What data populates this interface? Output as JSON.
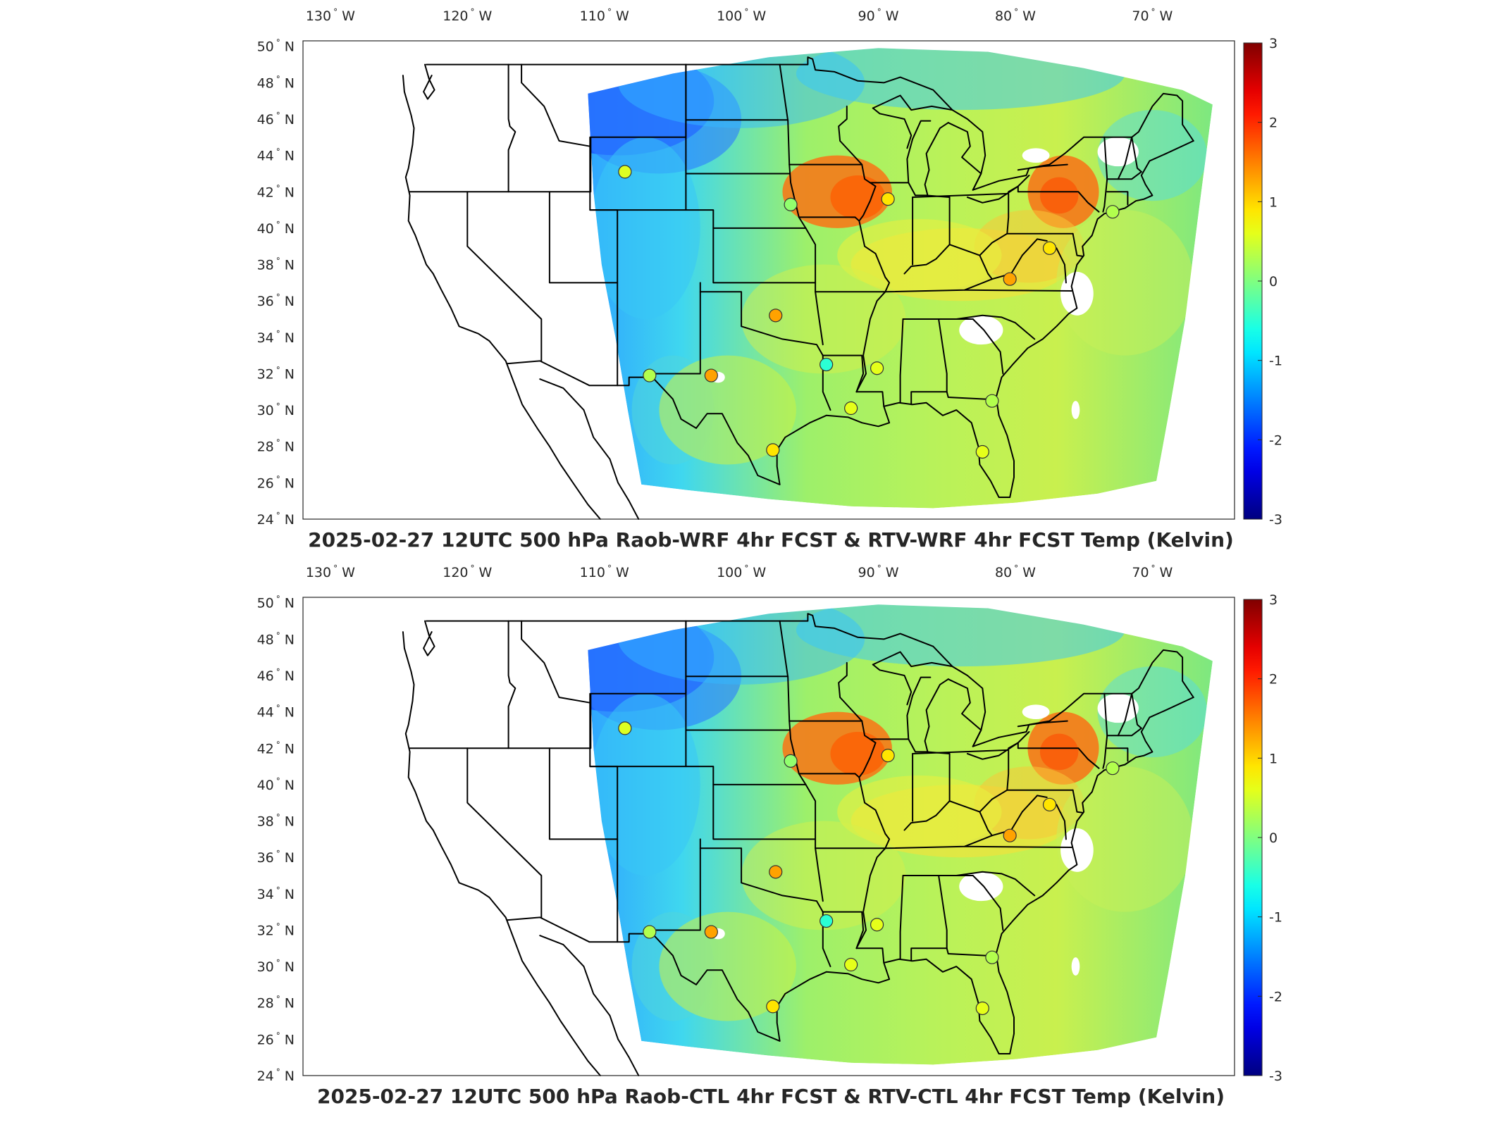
{
  "panels": [
    {
      "title": "2025-02-27 12UTC 500 hPa Raob-WRF 4hr FCST & RTV-WRF 4hr FCST Temp (Kelvin)",
      "stations": [
        {
          "lon": -108.5,
          "lat": 43.1,
          "value": 0.55
        },
        {
          "lon": -96.4,
          "lat": 41.3,
          "value": 0.1
        },
        {
          "lon": -89.3,
          "lat": 41.6,
          "value": 0.9
        },
        {
          "lon": -97.5,
          "lat": 35.2,
          "value": 1.3
        },
        {
          "lon": -106.7,
          "lat": 31.9,
          "value": 0.3
        },
        {
          "lon": -102.2,
          "lat": 31.9,
          "value": 1.3
        },
        {
          "lon": -93.8,
          "lat": 32.5,
          "value": -0.5
        },
        {
          "lon": -90.1,
          "lat": 32.3,
          "value": 0.6
        },
        {
          "lon": -92.0,
          "lat": 30.1,
          "value": 0.6
        },
        {
          "lon": -97.7,
          "lat": 27.8,
          "value": 0.9
        },
        {
          "lon": -81.7,
          "lat": 30.5,
          "value": 0.3
        },
        {
          "lon": -82.4,
          "lat": 27.7,
          "value": 0.6
        },
        {
          "lon": -80.4,
          "lat": 37.2,
          "value": 1.3
        },
        {
          "lon": -77.5,
          "lat": 38.9,
          "value": 0.9
        },
        {
          "lon": -72.9,
          "lat": 40.9,
          "value": 0.3
        }
      ]
    },
    {
      "title": "2025-02-27 12UTC 500 hPa Raob-CTL 4hr FCST & RTV-CTL 4hr FCST Temp (Kelvin)",
      "stations": [
        {
          "lon": -108.5,
          "lat": 43.1,
          "value": 0.55
        },
        {
          "lon": -96.4,
          "lat": 41.3,
          "value": 0.1
        },
        {
          "lon": -89.3,
          "lat": 41.6,
          "value": 0.9
        },
        {
          "lon": -97.5,
          "lat": 35.2,
          "value": 1.3
        },
        {
          "lon": -106.7,
          "lat": 31.9,
          "value": 0.3
        },
        {
          "lon": -102.2,
          "lat": 31.9,
          "value": 1.3
        },
        {
          "lon": -93.8,
          "lat": 32.5,
          "value": -0.5
        },
        {
          "lon": -90.1,
          "lat": 32.3,
          "value": 0.6
        },
        {
          "lon": -92.0,
          "lat": 30.1,
          "value": 0.6
        },
        {
          "lon": -97.7,
          "lat": 27.8,
          "value": 0.9
        },
        {
          "lon": -81.7,
          "lat": 30.5,
          "value": 0.3
        },
        {
          "lon": -82.4,
          "lat": 27.7,
          "value": 0.6
        },
        {
          "lon": -80.4,
          "lat": 37.2,
          "value": 1.3
        },
        {
          "lon": -77.5,
          "lat": 38.9,
          "value": 0.9
        },
        {
          "lon": -72.9,
          "lat": 40.9,
          "value": 0.3
        }
      ]
    }
  ],
  "lon_ticks": [
    {
      "num": "130",
      "hemi": "W"
    },
    {
      "num": "120",
      "hemi": "W"
    },
    {
      "num": "110",
      "hemi": "W"
    },
    {
      "num": "100",
      "hemi": "W"
    },
    {
      "num": "90",
      "hemi": "W"
    },
    {
      "num": "80",
      "hemi": "W"
    },
    {
      "num": "70",
      "hemi": "W"
    }
  ],
  "lat_ticks": [
    {
      "num": "50",
      "hemi": "N"
    },
    {
      "num": "48",
      "hemi": "N"
    },
    {
      "num": "46",
      "hemi": "N"
    },
    {
      "num": "44",
      "hemi": "N"
    },
    {
      "num": "42",
      "hemi": "N"
    },
    {
      "num": "40",
      "hemi": "N"
    },
    {
      "num": "38",
      "hemi": "N"
    },
    {
      "num": "36",
      "hemi": "N"
    },
    {
      "num": "34",
      "hemi": "N"
    },
    {
      "num": "32",
      "hemi": "N"
    },
    {
      "num": "30",
      "hemi": "N"
    },
    {
      "num": "28",
      "hemi": "N"
    },
    {
      "num": "26",
      "hemi": "N"
    },
    {
      "num": "24",
      "hemi": "N"
    }
  ],
  "degree_symbol": "°",
  "colorbar": {
    "ticks": [
      "3",
      "2",
      "1",
      "0",
      "-1",
      "-2",
      "-3"
    ],
    "range": [
      -3,
      3
    ],
    "colormap": "jet"
  },
  "colors": {
    "frame": "#262626",
    "border_lines": "#000000"
  }
}
